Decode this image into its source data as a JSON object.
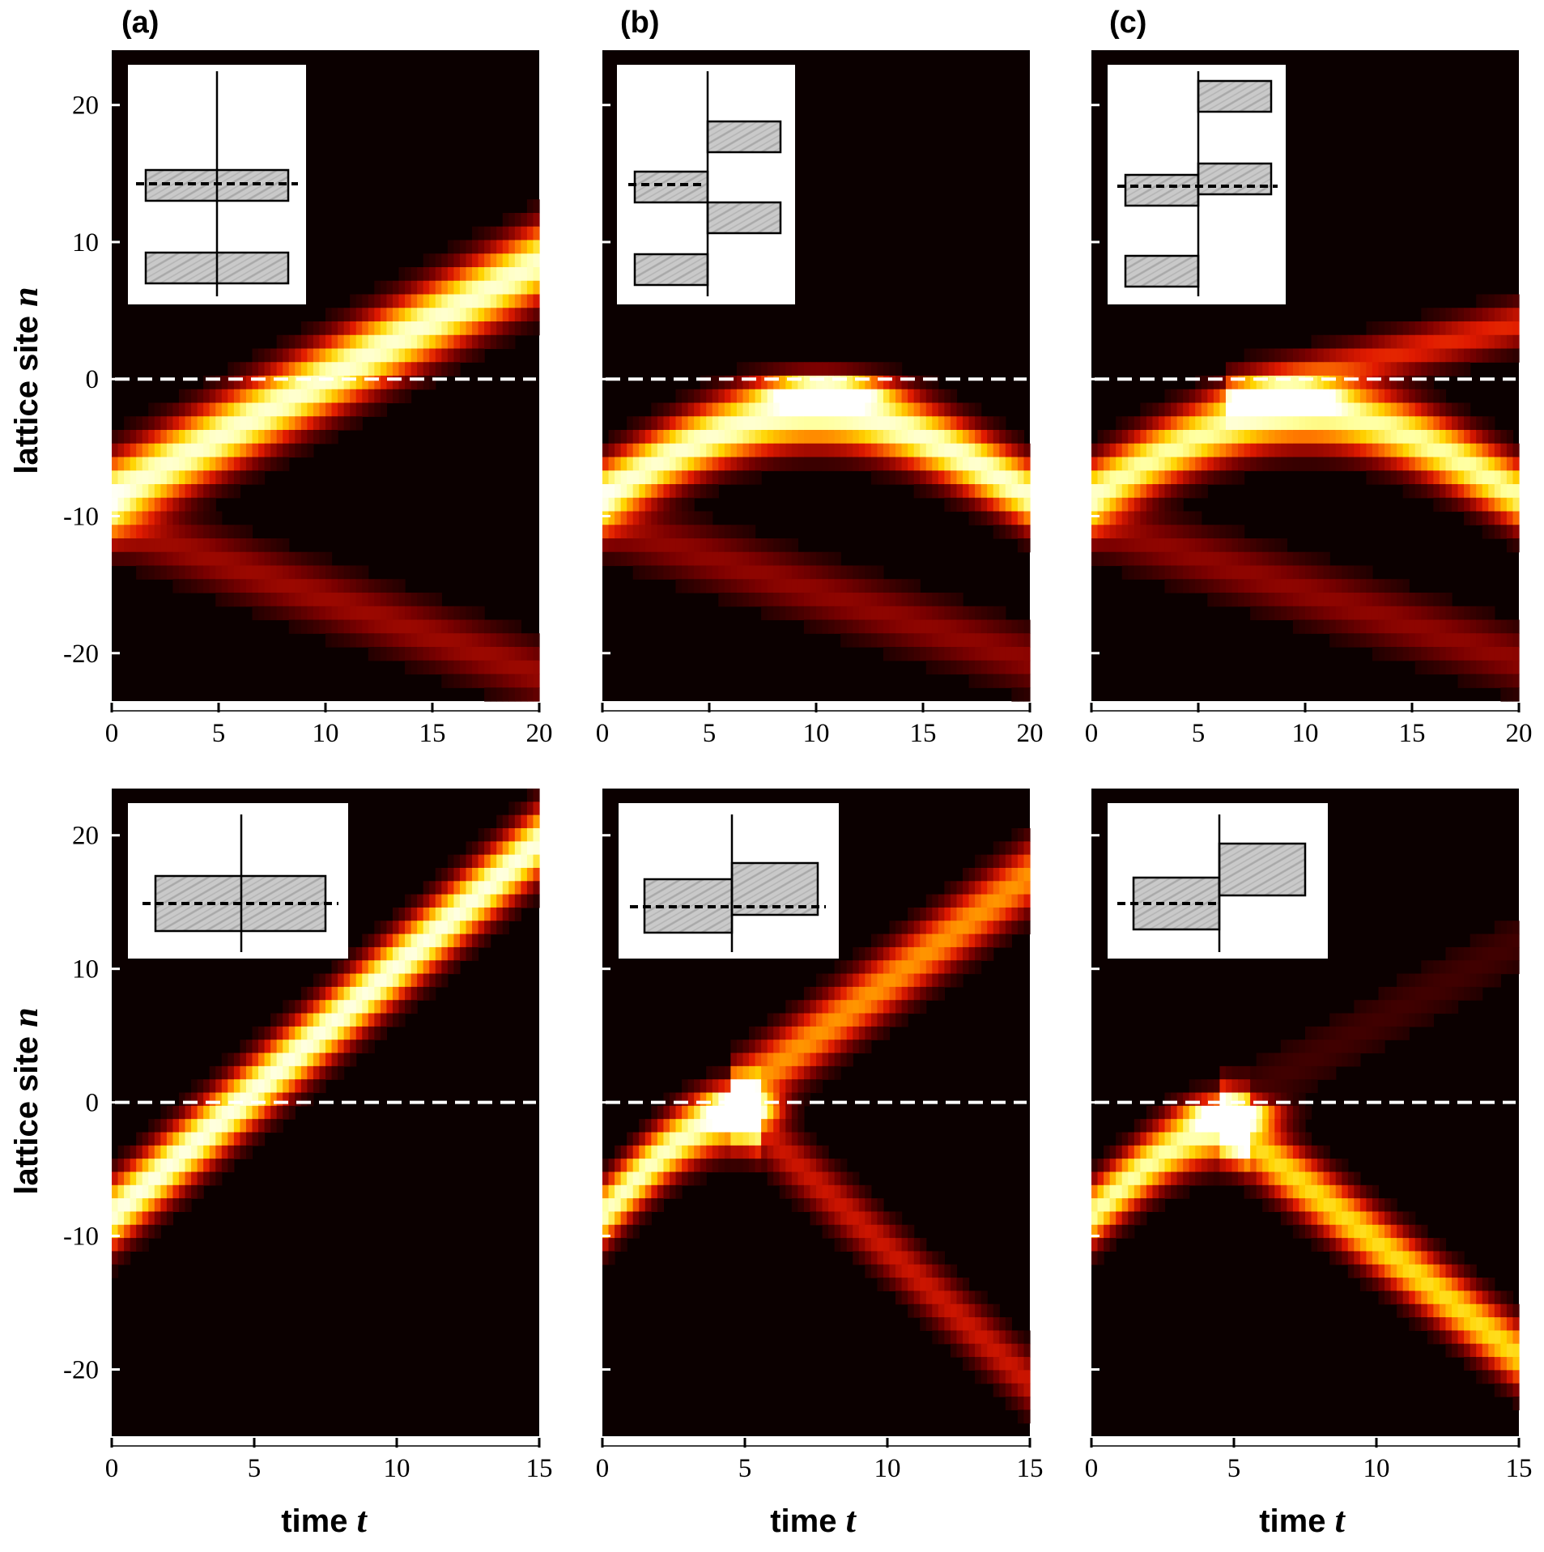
{
  "panel_letters": [
    "(a)",
    "(b)",
    "(c)"
  ],
  "y_axis_title": "lattice site",
  "y_axis_var": "n",
  "x_axis_title": "time",
  "x_axis_var": "t",
  "colors": {
    "background": "#0b0000",
    "dashed_line": "#ffffff",
    "inset_fill": "#c8c8c8",
    "colormap": [
      "#0b0000",
      "#7a0000",
      "#e01a00",
      "#ff7a00",
      "#ffd400",
      "#ffff9a",
      "#ffffff"
    ]
  },
  "chart_data": [
    {
      "type": "heatmap",
      "panel": "(a)",
      "row": "top",
      "xlim": [
        0,
        20
      ],
      "ylim": [
        -23.5,
        24
      ],
      "xticks": [
        0,
        5,
        10,
        15,
        20
      ],
      "yticks": [
        20,
        10,
        0,
        -10,
        -20
      ],
      "interface_n": 0,
      "beams": [
        {
          "n0": -8.5,
          "n1": 8.5,
          "amp": 0.92,
          "w": 2.6
        },
        {
          "n0": -10.5,
          "n1": -21.5,
          "amp": 0.22,
          "w": 2.2
        }
      ],
      "hotspot": null
    },
    {
      "type": "heatmap",
      "panel": "(b)",
      "row": "top",
      "xlim": [
        0,
        20
      ],
      "ylim": [
        -23.5,
        24
      ],
      "xticks": [
        0,
        5,
        10,
        15,
        20
      ],
      "yticks": [
        20,
        10,
        0,
        -10,
        -20
      ],
      "interface_n": 0,
      "beams": [
        {
          "n0": -8.5,
          "apex": -2.5,
          "n1": -8.5,
          "amp": 0.92,
          "w": 2.3
        },
        {
          "n0": -10.5,
          "n1": -20.5,
          "amp": 0.2,
          "w": 2.2
        }
      ],
      "hotspot": {
        "t": 10.5,
        "n": -1,
        "amp": 1.0,
        "wt": 2.6,
        "wn": 1
      }
    },
    {
      "type": "heatmap",
      "panel": "(c)",
      "row": "top",
      "xlim": [
        0,
        20
      ],
      "ylim": [
        -23.5,
        24
      ],
      "xticks": [
        0,
        5,
        10,
        15,
        20
      ],
      "yticks": [
        20,
        10,
        0,
        -10,
        -20
      ],
      "interface_n": 0,
      "beams": [
        {
          "n0": -8.5,
          "apex": -2.5,
          "n1": -8.5,
          "amp": 0.85,
          "w": 2.3
        },
        {
          "n0": -10.5,
          "n1": -20.5,
          "amp": 0.2,
          "w": 2.2
        },
        {
          "n0": -1,
          "n1": 4,
          "amp": 0.35,
          "w": 1.6,
          "tstart": 7
        }
      ],
      "hotspot": {
        "t": 9,
        "n": -1.5,
        "amp": 1.0,
        "wt": 2.2,
        "wn": 1
      }
    },
    {
      "type": "heatmap",
      "panel": "(a)",
      "row": "bottom",
      "xlim": [
        0,
        15
      ],
      "ylim": [
        -25,
        23.5
      ],
      "xticks": [
        0,
        5,
        10,
        15
      ],
      "yticks": [
        20,
        10,
        0,
        -10,
        -20
      ],
      "interface_n": 0,
      "beams": [
        {
          "n0": -8.5,
          "n1": 19.5,
          "amp": 0.95,
          "w": 2.4
        }
      ],
      "hotspot": null
    },
    {
      "type": "heatmap",
      "panel": "(b)",
      "row": "bottom",
      "xlim": [
        0,
        15
      ],
      "ylim": [
        -25,
        23.5
      ],
      "xticks": [
        0,
        5,
        10,
        15
      ],
      "yticks": [
        20,
        10,
        0,
        -10,
        -20
      ],
      "interface_n": 0,
      "beams": [
        {
          "n0": -8.5,
          "apex": -1,
          "n1": -1,
          "amp": 0.9,
          "w": 2.2,
          "tend": 5
        },
        {
          "n0": 1,
          "n1": 17,
          "amp": 0.55,
          "w": 2.4,
          "tstart": 5
        },
        {
          "n0": -1,
          "n1": -21,
          "amp": 0.3,
          "w": 2.2,
          "tstart": 5
        }
      ],
      "hotspot": {
        "t": 5,
        "n": -0.5,
        "amp": 0.95,
        "wt": 1.1,
        "wn": 1.2
      }
    },
    {
      "type": "heatmap",
      "panel": "(c)",
      "row": "bottom",
      "xlim": [
        0,
        15
      ],
      "ylim": [
        -25,
        23.5
      ],
      "xticks": [
        0,
        5,
        10,
        15
      ],
      "yticks": [
        20,
        10,
        0,
        -10,
        -20
      ],
      "interface_n": 0,
      "beams": [
        {
          "n0": -8.5,
          "apex": -2,
          "n1": -2,
          "amp": 0.85,
          "w": 2.2,
          "tend": 5
        },
        {
          "n0": -2,
          "n1": -19,
          "amp": 0.7,
          "w": 2.3,
          "tstart": 5
        },
        {
          "n0": 0,
          "n1": 12,
          "amp": 0.08,
          "w": 2.4,
          "tstart": 5
        }
      ],
      "hotspot": {
        "t": 5,
        "n": -1,
        "amp": 1.0,
        "wt": 1.4,
        "wn": 1
      }
    }
  ]
}
